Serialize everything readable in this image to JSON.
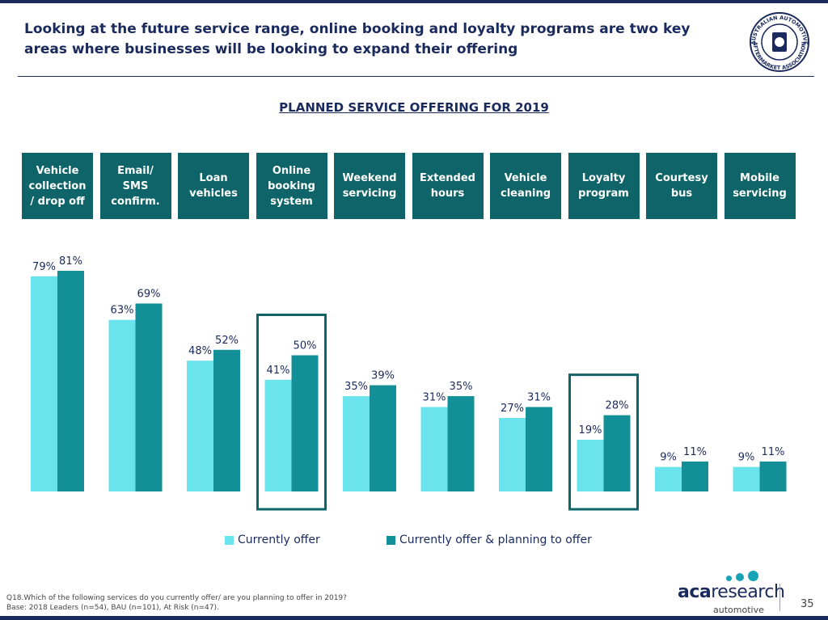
{
  "slide": {
    "title": "Looking at the future service range, online booking and loyalty programs are two key areas where businesses will be looking to expand their offering",
    "page_number": "35",
    "footnote_line1": "Q18.Which of the following services do you currently offer/ are you planning to offer in 2019?",
    "footnote_line2": "Base: 2018 Leaders (n=54), BAU (n=101), At Risk (n=47).",
    "logo_text_top": "AUSTRALIAN AUTOMOTIVE",
    "logo_text_bottom": "AFTERMARKET ASSOCIATION",
    "brand_bold": "aca",
    "brand_light": "research",
    "brand_sub": "automotive"
  },
  "colors": {
    "navy": "#1b2a5c",
    "header_box": "#0e6468",
    "series_current": "#6be3ec",
    "series_planning": "#138f98",
    "highlight": "#0e6468"
  },
  "chart_data": {
    "type": "bar",
    "title": "PLANNED SERVICE OFFERING FOR 2019",
    "categories": [
      "Vehicle\ncollection\n/ drop off",
      "Email/\nSMS\nconfirm.",
      "Loan\nvehicles",
      "Online\nbooking\nsystem",
      "Weekend\nservicing",
      "Extended\nhours",
      "Vehicle\ncleaning",
      "Loyalty\nprogram",
      "Courtesy\nbus",
      "Mobile\nservicing"
    ],
    "series": [
      {
        "name": "Currently offer",
        "values": [
          79,
          63,
          48,
          41,
          35,
          31,
          27,
          19,
          9,
          9
        ]
      },
      {
        "name": "Currently offer & planning to offer",
        "values": [
          81,
          69,
          52,
          50,
          39,
          35,
          31,
          28,
          11,
          11
        ]
      }
    ],
    "value_suffix": "%",
    "ylim": [
      0,
      100
    ],
    "highlighted_categories": [
      "Online\nbooking\nsystem",
      "Loyalty\nprogram"
    ],
    "legend": "bottom-center",
    "grid": false
  }
}
